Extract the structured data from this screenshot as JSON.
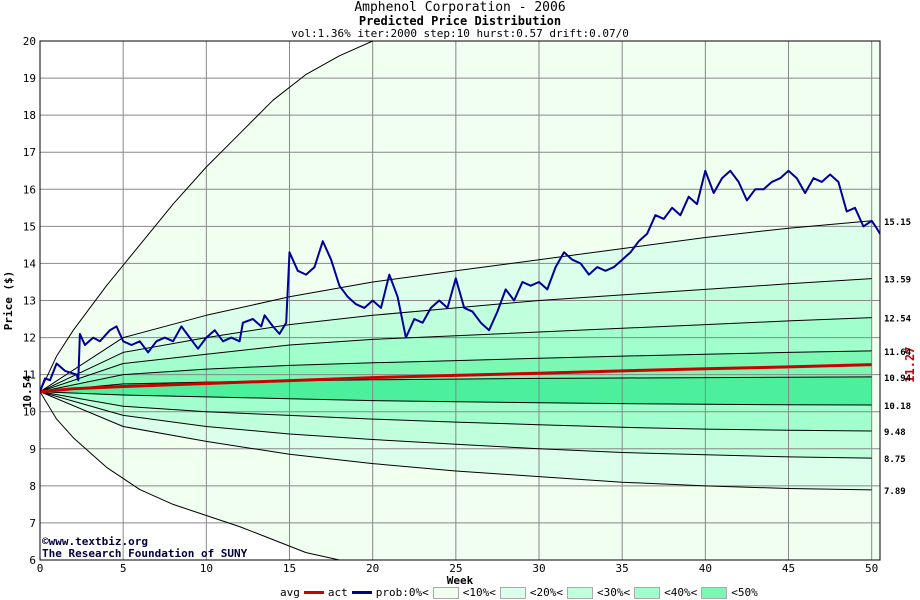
{
  "header": {
    "title": "Amphenol Corporation - 2006",
    "subtitle": "Predicted Price Distribution",
    "params": "vol:1.36% iter:2000 step:10 hurst:0.57 drift:0.07/0"
  },
  "credits": {
    "site": "©www.textbiz.org",
    "org": "The Research Foundation of SUNY"
  },
  "legend": {
    "avg": "avg",
    "act": "act",
    "prob": "prob:0%<",
    "b10": "<10%<",
    "b20": "<20%<",
    "b30": "<30%<",
    "b40": "<40%<",
    "b50": "<50%"
  },
  "colors": {
    "avg": "#cc0000",
    "act": "#000099",
    "band0": "#f0fff0",
    "band10": "#dcffec",
    "band20": "#c0ffdc",
    "band30": "#a0ffcc",
    "band40": "#7cf7b4",
    "band50": "#4cf09c"
  },
  "chart_data": {
    "type": "line",
    "xlabel": "Week",
    "ylabel": "Price ($)",
    "xlim": [
      0,
      50.5
    ],
    "ylim": [
      6,
      20
    ],
    "x_ticks": [
      0,
      5,
      10,
      15,
      20,
      25,
      30,
      35,
      40,
      45,
      50
    ],
    "y_ticks": [
      6,
      7,
      8,
      9,
      10,
      11,
      12,
      13,
      14,
      15,
      16,
      17,
      18,
      19,
      20
    ],
    "start_price_label": "10.54",
    "end_avg_label": "11.27",
    "band_end_labels": [
      "15.15",
      "13.59",
      "12.54",
      "11.64",
      "10.94",
      "10.18",
      "9.48",
      "8.75",
      "7.89"
    ],
    "envelope_upper": [
      [
        0,
        10.54
      ],
      [
        1,
        11.5
      ],
      [
        2,
        12.2
      ],
      [
        4,
        13.4
      ],
      [
        6,
        14.5
      ],
      [
        8,
        15.6
      ],
      [
        10,
        16.6
      ],
      [
        12,
        17.5
      ],
      [
        14,
        18.4
      ],
      [
        16,
        19.1
      ],
      [
        18,
        19.6
      ],
      [
        20,
        20
      ]
    ],
    "envelope_lower": [
      [
        0,
        10.54
      ],
      [
        1,
        9.8
      ],
      [
        2,
        9.3
      ],
      [
        4,
        8.5
      ],
      [
        5,
        8.2
      ],
      [
        6,
        7.9
      ],
      [
        8,
        7.5
      ],
      [
        10,
        7.2
      ],
      [
        12,
        6.9
      ],
      [
        14,
        6.55
      ],
      [
        16,
        6.2
      ],
      [
        18,
        6.0
      ]
    ],
    "band_lines": [
      {
        "name": "p95",
        "values": [
          [
            0,
            10.54
          ],
          [
            5,
            12.0
          ],
          [
            10,
            12.6
          ],
          [
            15,
            13.1
          ],
          [
            20,
            13.5
          ],
          [
            25,
            13.8
          ],
          [
            30,
            14.1
          ],
          [
            35,
            14.4
          ],
          [
            40,
            14.7
          ],
          [
            45,
            14.95
          ],
          [
            50,
            15.15
          ]
        ]
      },
      {
        "name": "p90",
        "values": [
          [
            0,
            10.54
          ],
          [
            5,
            11.6
          ],
          [
            10,
            12.0
          ],
          [
            15,
            12.35
          ],
          [
            20,
            12.6
          ],
          [
            25,
            12.8
          ],
          [
            30,
            13.0
          ],
          [
            35,
            13.15
          ],
          [
            40,
            13.3
          ],
          [
            45,
            13.45
          ],
          [
            50,
            13.59
          ]
        ]
      },
      {
        "name": "p80",
        "values": [
          [
            0,
            10.54
          ],
          [
            5,
            11.3
          ],
          [
            10,
            11.55
          ],
          [
            15,
            11.8
          ],
          [
            20,
            11.95
          ],
          [
            25,
            12.05
          ],
          [
            30,
            12.15
          ],
          [
            35,
            12.25
          ],
          [
            40,
            12.35
          ],
          [
            45,
            12.45
          ],
          [
            50,
            12.54
          ]
        ]
      },
      {
        "name": "p70",
        "values": [
          [
            0,
            10.54
          ],
          [
            5,
            11.0
          ],
          [
            10,
            11.15
          ],
          [
            15,
            11.25
          ],
          [
            20,
            11.32
          ],
          [
            25,
            11.38
          ],
          [
            30,
            11.44
          ],
          [
            35,
            11.5
          ],
          [
            40,
            11.55
          ],
          [
            45,
            11.6
          ],
          [
            50,
            11.64
          ]
        ]
      },
      {
        "name": "p60",
        "values": [
          [
            0,
            10.54
          ],
          [
            5,
            10.75
          ],
          [
            10,
            10.8
          ],
          [
            15,
            10.83
          ],
          [
            20,
            10.86
          ],
          [
            25,
            10.88
          ],
          [
            30,
            10.9
          ],
          [
            35,
            10.91
          ],
          [
            40,
            10.92
          ],
          [
            45,
            10.93
          ],
          [
            50,
            10.94
          ]
        ]
      },
      {
        "name": "p40",
        "values": [
          [
            0,
            10.54
          ],
          [
            5,
            10.45
          ],
          [
            10,
            10.4
          ],
          [
            15,
            10.35
          ],
          [
            20,
            10.3
          ],
          [
            25,
            10.27
          ],
          [
            30,
            10.24
          ],
          [
            35,
            10.22
          ],
          [
            40,
            10.2
          ],
          [
            45,
            10.19
          ],
          [
            50,
            10.18
          ]
        ]
      },
      {
        "name": "p30",
        "values": [
          [
            0,
            10.54
          ],
          [
            5,
            10.15
          ],
          [
            10,
            10.0
          ],
          [
            15,
            9.9
          ],
          [
            20,
            9.8
          ],
          [
            25,
            9.72
          ],
          [
            30,
            9.65
          ],
          [
            35,
            9.58
          ],
          [
            40,
            9.53
          ],
          [
            45,
            9.5
          ],
          [
            50,
            9.48
          ]
        ]
      },
      {
        "name": "p20",
        "values": [
          [
            0,
            10.54
          ],
          [
            5,
            9.9
          ],
          [
            10,
            9.6
          ],
          [
            15,
            9.4
          ],
          [
            20,
            9.25
          ],
          [
            25,
            9.12
          ],
          [
            30,
            9.0
          ],
          [
            35,
            8.9
          ],
          [
            40,
            8.84
          ],
          [
            45,
            8.78
          ],
          [
            50,
            8.75
          ]
        ]
      },
      {
        "name": "p10",
        "values": [
          [
            0,
            10.54
          ],
          [
            5,
            9.6
          ],
          [
            10,
            9.2
          ],
          [
            15,
            8.85
          ],
          [
            20,
            8.6
          ],
          [
            25,
            8.4
          ],
          [
            30,
            8.25
          ],
          [
            35,
            8.1
          ],
          [
            40,
            8.0
          ],
          [
            45,
            7.93
          ],
          [
            50,
            7.89
          ]
        ]
      }
    ],
    "series": [
      {
        "name": "avg",
        "values": [
          [
            0,
            10.54
          ],
          [
            2,
            10.62
          ],
          [
            5,
            10.68
          ],
          [
            10,
            10.76
          ],
          [
            15,
            10.84
          ],
          [
            20,
            10.92
          ],
          [
            25,
            10.98
          ],
          [
            30,
            11.04
          ],
          [
            35,
            11.1
          ],
          [
            40,
            11.16
          ],
          [
            45,
            11.21
          ],
          [
            50,
            11.27
          ]
        ]
      },
      {
        "name": "act",
        "values": [
          [
            0,
            10.54
          ],
          [
            0.3,
            10.9
          ],
          [
            0.6,
            10.85
          ],
          [
            1,
            11.3
          ],
          [
            1.5,
            11.1
          ],
          [
            2.2,
            11.0
          ],
          [
            2.3,
            10.85
          ],
          [
            2.4,
            12.1
          ],
          [
            2.7,
            11.8
          ],
          [
            3.2,
            12.0
          ],
          [
            3.6,
            11.9
          ],
          [
            4.2,
            12.2
          ],
          [
            4.6,
            12.3
          ],
          [
            5,
            11.9
          ],
          [
            5.5,
            11.8
          ],
          [
            6,
            11.9
          ],
          [
            6.5,
            11.6
          ],
          [
            7,
            11.9
          ],
          [
            7.5,
            12.0
          ],
          [
            8,
            11.9
          ],
          [
            8.5,
            12.3
          ],
          [
            9,
            12.0
          ],
          [
            9.5,
            11.7
          ],
          [
            10,
            12.0
          ],
          [
            10.5,
            12.2
          ],
          [
            11,
            11.9
          ],
          [
            11.5,
            12.0
          ],
          [
            12,
            11.9
          ],
          [
            12.2,
            12.4
          ],
          [
            12.8,
            12.5
          ],
          [
            13.3,
            12.3
          ],
          [
            13.5,
            12.6
          ],
          [
            14,
            12.3
          ],
          [
            14.4,
            12.1
          ],
          [
            14.8,
            12.4
          ],
          [
            15,
            14.3
          ],
          [
            15.5,
            13.8
          ],
          [
            16,
            13.7
          ],
          [
            16.5,
            13.9
          ],
          [
            17,
            14.6
          ],
          [
            17.5,
            14.1
          ],
          [
            18,
            13.4
          ],
          [
            18.5,
            13.1
          ],
          [
            19,
            12.9
          ],
          [
            19.5,
            12.8
          ],
          [
            20,
            13.0
          ],
          [
            20.5,
            12.8
          ],
          [
            21,
            13.7
          ],
          [
            21.5,
            13.1
          ],
          [
            22,
            12.0
          ],
          [
            22.5,
            12.5
          ],
          [
            23,
            12.4
          ],
          [
            23.5,
            12.8
          ],
          [
            24,
            13.0
          ],
          [
            24.5,
            12.8
          ],
          [
            25,
            13.6
          ],
          [
            25.5,
            12.8
          ],
          [
            26,
            12.7
          ],
          [
            26.5,
            12.4
          ],
          [
            27,
            12.2
          ],
          [
            27.5,
            12.7
          ],
          [
            28,
            13.3
          ],
          [
            28.5,
            13.0
          ],
          [
            29,
            13.5
          ],
          [
            29.5,
            13.4
          ],
          [
            30,
            13.5
          ],
          [
            30.5,
            13.3
          ],
          [
            31,
            13.9
          ],
          [
            31.5,
            14.3
          ],
          [
            32,
            14.1
          ],
          [
            32.5,
            14.0
          ],
          [
            33,
            13.7
          ],
          [
            33.5,
            13.9
          ],
          [
            34,
            13.8
          ],
          [
            34.5,
            13.9
          ],
          [
            35,
            14.1
          ],
          [
            35.5,
            14.3
          ],
          [
            36,
            14.6
          ],
          [
            36.5,
            14.8
          ],
          [
            37,
            15.3
          ],
          [
            37.5,
            15.2
          ],
          [
            38,
            15.5
          ],
          [
            38.5,
            15.3
          ],
          [
            39,
            15.8
          ],
          [
            39.5,
            15.6
          ],
          [
            40,
            16.5
          ],
          [
            40.5,
            15.9
          ],
          [
            41,
            16.3
          ],
          [
            41.5,
            16.5
          ],
          [
            42,
            16.2
          ],
          [
            42.5,
            15.7
          ],
          [
            43,
            16.0
          ],
          [
            43.5,
            16.0
          ],
          [
            44,
            16.2
          ],
          [
            44.5,
            16.3
          ],
          [
            45,
            16.5
          ],
          [
            45.5,
            16.3
          ],
          [
            46,
            15.9
          ],
          [
            46.5,
            16.3
          ],
          [
            47,
            16.2
          ],
          [
            47.5,
            16.4
          ],
          [
            48,
            16.2
          ],
          [
            48.5,
            15.4
          ],
          [
            49,
            15.5
          ],
          [
            49.5,
            15.0
          ],
          [
            50,
            15.15
          ],
          [
            50.3,
            14.95
          ],
          [
            50.5,
            14.8
          ]
        ]
      }
    ]
  }
}
